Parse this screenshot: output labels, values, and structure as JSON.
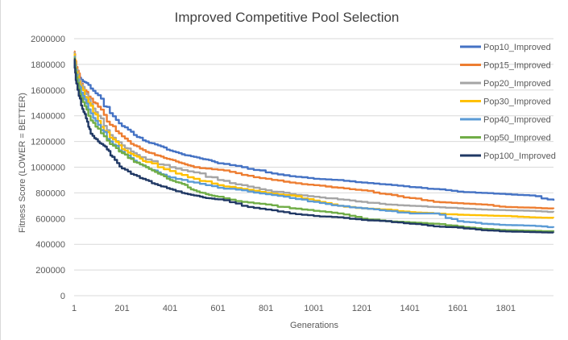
{
  "chart_data": {
    "type": "line",
    "title": "Improved Competitive Pool Selection",
    "xlabel": "Generations",
    "ylabel": "Fitness Score (LOWER = BETTER)",
    "xlim": [
      1,
      2000
    ],
    "ylim": [
      0,
      2000000
    ],
    "x_ticks": [
      "1",
      "201",
      "401",
      "601",
      "801",
      "1001",
      "1201",
      "1401",
      "1601",
      "1801"
    ],
    "y_ticks": [
      "0",
      "200000",
      "400000",
      "600000",
      "800000",
      "1000000",
      "1200000",
      "1400000",
      "1600000",
      "1800000",
      "2000000"
    ],
    "grid": "horizontal",
    "legend_position": "right",
    "series": [
      {
        "name": "Pop10_Improved",
        "color": "#4472c4",
        "points": [
          [
            1,
            1870000
          ],
          [
            10,
            1740000
          ],
          [
            30,
            1680000
          ],
          [
            60,
            1640000
          ],
          [
            100,
            1560000
          ],
          [
            150,
            1420000
          ],
          [
            200,
            1320000
          ],
          [
            250,
            1250000
          ],
          [
            300,
            1200000
          ],
          [
            350,
            1170000
          ],
          [
            400,
            1130000
          ],
          [
            450,
            1100000
          ],
          [
            500,
            1080000
          ],
          [
            550,
            1060000
          ],
          [
            600,
            1030000
          ],
          [
            700,
            1000000
          ],
          [
            800,
            960000
          ],
          [
            900,
            930000
          ],
          [
            1000,
            910000
          ],
          [
            1100,
            900000
          ],
          [
            1200,
            880000
          ],
          [
            1300,
            865000
          ],
          [
            1400,
            845000
          ],
          [
            1500,
            830000
          ],
          [
            1600,
            810000
          ],
          [
            1700,
            800000
          ],
          [
            1800,
            790000
          ],
          [
            1900,
            780000
          ],
          [
            2000,
            740000
          ]
        ]
      },
      {
        "name": "Pop15_Improved",
        "color": "#ed7d31",
        "points": [
          [
            1,
            1900000
          ],
          [
            10,
            1780000
          ],
          [
            30,
            1650000
          ],
          [
            60,
            1550000
          ],
          [
            100,
            1470000
          ],
          [
            150,
            1330000
          ],
          [
            200,
            1240000
          ],
          [
            250,
            1170000
          ],
          [
            300,
            1120000
          ],
          [
            350,
            1090000
          ],
          [
            400,
            1060000
          ],
          [
            450,
            1030000
          ],
          [
            500,
            1000000
          ],
          [
            600,
            980000
          ],
          [
            700,
            940000
          ],
          [
            800,
            910000
          ],
          [
            900,
            880000
          ],
          [
            1000,
            860000
          ],
          [
            1100,
            840000
          ],
          [
            1200,
            820000
          ],
          [
            1300,
            790000
          ],
          [
            1400,
            760000
          ],
          [
            1500,
            730000
          ],
          [
            1600,
            720000
          ],
          [
            1700,
            710000
          ],
          [
            1800,
            690000
          ],
          [
            1900,
            685000
          ],
          [
            2000,
            675000
          ]
        ]
      },
      {
        "name": "Pop20_Improved",
        "color": "#a5a5a5",
        "points": [
          [
            1,
            1890000
          ],
          [
            10,
            1760000
          ],
          [
            30,
            1640000
          ],
          [
            60,
            1530000
          ],
          [
            100,
            1400000
          ],
          [
            150,
            1250000
          ],
          [
            200,
            1170000
          ],
          [
            250,
            1110000
          ],
          [
            300,
            1060000
          ],
          [
            400,
            1000000
          ],
          [
            500,
            960000
          ],
          [
            600,
            900000
          ],
          [
            700,
            860000
          ],
          [
            800,
            820000
          ],
          [
            900,
            790000
          ],
          [
            1000,
            770000
          ],
          [
            1100,
            750000
          ],
          [
            1200,
            730000
          ],
          [
            1300,
            710000
          ],
          [
            1400,
            700000
          ],
          [
            1500,
            690000
          ],
          [
            1600,
            680000
          ],
          [
            1700,
            670000
          ],
          [
            1800,
            665000
          ],
          [
            1900,
            660000
          ],
          [
            2000,
            650000
          ]
        ]
      },
      {
        "name": "Pop30_Improved",
        "color": "#ffc000",
        "points": [
          [
            1,
            1880000
          ],
          [
            10,
            1740000
          ],
          [
            30,
            1620000
          ],
          [
            60,
            1500000
          ],
          [
            100,
            1360000
          ],
          [
            150,
            1230000
          ],
          [
            200,
            1140000
          ],
          [
            250,
            1090000
          ],
          [
            300,
            1040000
          ],
          [
            400,
            970000
          ],
          [
            500,
            910000
          ],
          [
            600,
            860000
          ],
          [
            700,
            830000
          ],
          [
            800,
            800000
          ],
          [
            900,
            780000
          ],
          [
            1000,
            740000
          ],
          [
            1100,
            700000
          ],
          [
            1200,
            680000
          ],
          [
            1300,
            670000
          ],
          [
            1400,
            650000
          ],
          [
            1500,
            640000
          ],
          [
            1600,
            630000
          ],
          [
            1700,
            625000
          ],
          [
            1800,
            620000
          ],
          [
            1900,
            610000
          ],
          [
            2000,
            605000
          ]
        ]
      },
      {
        "name": "Pop40_Improved",
        "color": "#5b9bd5",
        "points": [
          [
            1,
            1860000
          ],
          [
            10,
            1720000
          ],
          [
            30,
            1580000
          ],
          [
            60,
            1450000
          ],
          [
            100,
            1330000
          ],
          [
            150,
            1200000
          ],
          [
            200,
            1120000
          ],
          [
            250,
            1050000
          ],
          [
            300,
            1000000
          ],
          [
            350,
            960000
          ],
          [
            400,
            920000
          ],
          [
            500,
            880000
          ],
          [
            600,
            840000
          ],
          [
            700,
            820000
          ],
          [
            800,
            790000
          ],
          [
            900,
            760000
          ],
          [
            1000,
            730000
          ],
          [
            1100,
            700000
          ],
          [
            1200,
            680000
          ],
          [
            1300,
            660000
          ],
          [
            1400,
            640000
          ],
          [
            1500,
            640000
          ],
          [
            1600,
            580000
          ],
          [
            1700,
            560000
          ],
          [
            1800,
            550000
          ],
          [
            1900,
            545000
          ],
          [
            2000,
            530000
          ]
        ]
      },
      {
        "name": "Pop50_Improved",
        "color": "#70ad47",
        "points": [
          [
            1,
            1850000
          ],
          [
            10,
            1700000
          ],
          [
            30,
            1540000
          ],
          [
            60,
            1400000
          ],
          [
            100,
            1300000
          ],
          [
            150,
            1180000
          ],
          [
            200,
            1110000
          ],
          [
            250,
            1040000
          ],
          [
            300,
            1000000
          ],
          [
            350,
            950000
          ],
          [
            400,
            900000
          ],
          [
            450,
            870000
          ],
          [
            500,
            820000
          ],
          [
            550,
            790000
          ],
          [
            600,
            770000
          ],
          [
            700,
            730000
          ],
          [
            800,
            710000
          ],
          [
            900,
            680000
          ],
          [
            1000,
            660000
          ],
          [
            1100,
            640000
          ],
          [
            1200,
            600000
          ],
          [
            1300,
            580000
          ],
          [
            1400,
            570000
          ],
          [
            1500,
            560000
          ],
          [
            1600,
            540000
          ],
          [
            1700,
            520000
          ],
          [
            1800,
            510000
          ],
          [
            1900,
            505000
          ],
          [
            2000,
            500000
          ]
        ]
      },
      {
        "name": "Pop100_Improved",
        "color": "#203864",
        "points": [
          [
            1,
            1840000
          ],
          [
            10,
            1650000
          ],
          [
            30,
            1480000
          ],
          [
            50,
            1380000
          ],
          [
            70,
            1260000
          ],
          [
            100,
            1200000
          ],
          [
            130,
            1160000
          ],
          [
            160,
            1080000
          ],
          [
            200,
            990000
          ],
          [
            250,
            940000
          ],
          [
            300,
            900000
          ],
          [
            350,
            860000
          ],
          [
            400,
            830000
          ],
          [
            450,
            800000
          ],
          [
            500,
            780000
          ],
          [
            550,
            760000
          ],
          [
            600,
            750000
          ],
          [
            700,
            700000
          ],
          [
            800,
            670000
          ],
          [
            900,
            640000
          ],
          [
            1000,
            620000
          ],
          [
            1100,
            610000
          ],
          [
            1200,
            590000
          ],
          [
            1300,
            580000
          ],
          [
            1400,
            560000
          ],
          [
            1500,
            540000
          ],
          [
            1600,
            530000
          ],
          [
            1700,
            510000
          ],
          [
            1800,
            500000
          ],
          [
            1900,
            495000
          ],
          [
            2000,
            490000
          ]
        ]
      }
    ]
  }
}
